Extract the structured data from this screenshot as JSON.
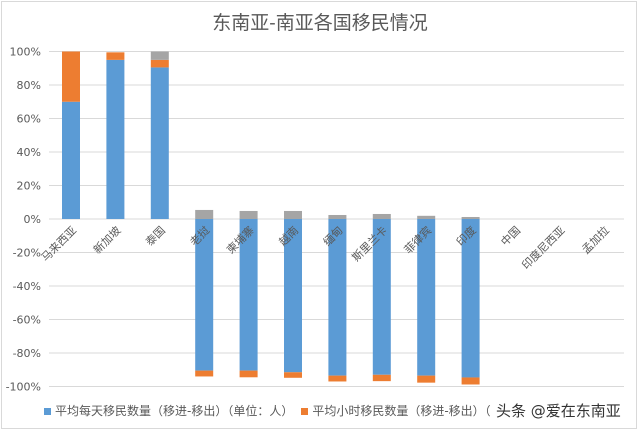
{
  "chart_data": {
    "type": "bar",
    "stacked": true,
    "title": "东南亚-南亚各国移民情况",
    "xlabel": "",
    "ylabel": "",
    "ylim": [
      -100,
      100
    ],
    "yticks": [
      "100%",
      "80%",
      "60%",
      "40%",
      "20%",
      "0%",
      "-20%",
      "-40%",
      "-60%",
      "-80%",
      "-100%"
    ],
    "grid": true,
    "legend_position": "bottom",
    "categories": [
      "马来西亚",
      "新加坡",
      "泰国",
      "老挝",
      "柬埔寨",
      "越南",
      "缅甸",
      "斯里兰卡",
      "菲律宾",
      "印度",
      "中国",
      "印度尼西亚",
      "孟加拉"
    ],
    "series": [
      {
        "name": "平均每天移民数量（移进-移出）（单位：人）",
        "color": "#5b9bd5",
        "values": [
          70,
          95,
          90.5,
          -90.5,
          -90.5,
          -91.5,
          -93.5,
          -93,
          -93.5,
          -94.6,
          0,
          0,
          0
        ]
      },
      {
        "name": "平均小时移民数量（移进-移出）（",
        "color": "#ed7d31",
        "values": [
          30,
          4.5,
          4.5,
          -3.5,
          -4,
          -3.3,
          -3.5,
          -3.8,
          -4.2,
          -4.2,
          0,
          0,
          0
        ]
      },
      {
        "color": "#a5a5a5",
        "values": [
          0,
          0,
          5,
          5.4,
          4.8,
          4.8,
          2.4,
          3,
          1.9,
          1.2,
          0,
          0,
          0
        ]
      }
    ]
  },
  "watermark": "头条 @爱在东南亚"
}
